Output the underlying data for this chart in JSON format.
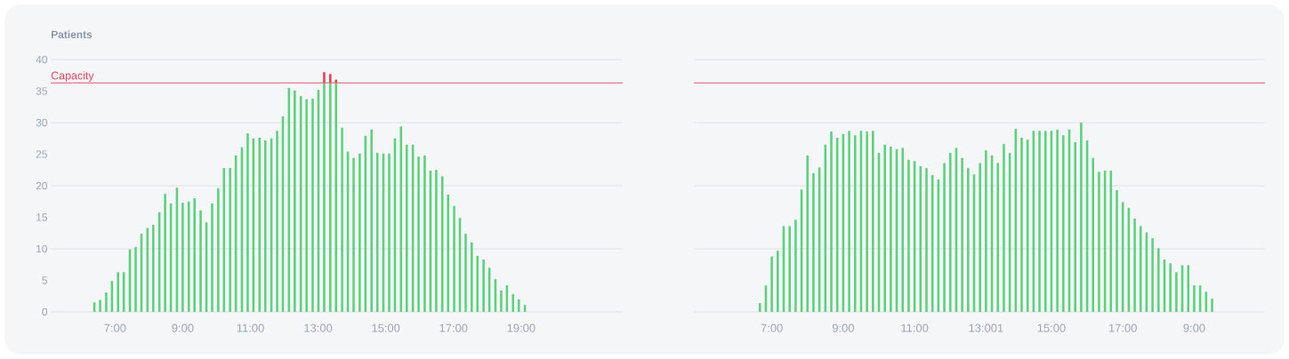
{
  "chart_data": [
    {
      "type": "bar",
      "ylabel": "Patients",
      "stacked": true,
      "grid": "y",
      "x": [
        6.39,
        6.56,
        6.74,
        6.91,
        7.09,
        7.26,
        7.44,
        7.61,
        7.78,
        7.96,
        8.13,
        8.31,
        8.48,
        8.65,
        8.83,
        9.0,
        9.18,
        9.35,
        9.53,
        9.7,
        9.87,
        10.05,
        10.22,
        10.4,
        10.57,
        10.75,
        10.92,
        11.09,
        11.27,
        11.44,
        11.62,
        11.79,
        11.96,
        12.14,
        12.31,
        12.49,
        12.66,
        12.84,
        13.01,
        13.18,
        13.36,
        13.53,
        13.71,
        13.88,
        14.05,
        14.23,
        14.4,
        14.58,
        14.75,
        14.93,
        15.1,
        15.27,
        15.45,
        15.62,
        15.8,
        15.97,
        16.15,
        16.32,
        16.49,
        16.67,
        16.84,
        17.02,
        17.19,
        17.36,
        17.54,
        17.71,
        17.89,
        18.06,
        18.24,
        18.41,
        18.58,
        18.76,
        18.93,
        19.11
      ],
      "series": [
        {
          "color": "#5ed17f",
          "values": [
            1.5,
            1.9,
            3.1,
            4.9,
            6.3,
            6.3,
            9.9,
            10.3,
            12.4,
            13.3,
            13.8,
            15.8,
            18.7,
            17.2,
            19.7,
            17.3,
            17.5,
            18.0,
            16.1,
            14.2,
            17.2,
            19.6,
            22.8,
            22.8,
            24.8,
            26.1,
            28.3,
            27.5,
            27.6,
            27.2,
            27.5,
            28.7,
            31.0,
            35.5,
            35.1,
            34.2,
            33.7,
            33.8,
            35.2,
            36.3,
            36.3,
            36.3,
            29.2,
            25.4,
            24.4,
            25.1,
            27.9,
            28.9,
            25.2,
            25.1,
            25.1,
            27.5,
            29.4,
            26.5,
            26.5,
            24.6,
            24.8,
            22.4,
            22.5,
            21.5,
            18.6,
            16.8,
            14.9,
            12.4,
            11.0,
            8.9,
            8.3,
            7.0,
            5.2,
            3.4,
            4.2,
            2.8,
            2.0,
            1.1
          ]
        },
        {
          "color": "#ef3e55",
          "values": [
            null,
            null,
            null,
            null,
            null,
            null,
            null,
            null,
            null,
            null,
            null,
            null,
            null,
            null,
            null,
            null,
            null,
            null,
            null,
            null,
            null,
            null,
            null,
            null,
            null,
            null,
            null,
            null,
            null,
            null,
            null,
            null,
            null,
            null,
            null,
            null,
            null,
            null,
            null,
            1.7,
            1.4,
            0.5,
            null,
            null,
            null,
            null,
            null,
            null,
            null,
            null,
            null,
            null,
            null,
            null,
            null,
            null,
            null,
            null,
            null,
            null,
            null,
            null,
            null,
            null,
            null,
            null,
            null,
            null,
            null,
            null,
            null,
            null,
            null,
            null
          ]
        }
      ],
      "xlim": [
        5.1,
        22
      ],
      "xticks": [
        {
          "value": 7,
          "label": "7:00"
        },
        {
          "value": 9,
          "label": "9:00"
        },
        {
          "value": 11,
          "label": "11:00"
        },
        {
          "value": 13,
          "label": "13:00"
        },
        {
          "value": 15,
          "label": "15:00"
        },
        {
          "value": 17,
          "label": "17:00"
        },
        {
          "value": 19,
          "label": "19:00"
        }
      ],
      "ylim": [
        0,
        40
      ],
      "yticks": [
        0,
        5,
        10,
        15,
        20,
        25,
        30,
        35,
        40
      ],
      "ref_lines": [
        {
          "axis": "y",
          "value": 36.3,
          "label": "Capacity",
          "color": "#e0475a"
        }
      ]
    },
    {
      "type": "bar",
      "grid": "y",
      "tick_labels": "x",
      "categories": [
        null,
        null,
        "7:00",
        null,
        null,
        null,
        null,
        null,
        null,
        null,
        null,
        null,
        null,
        null,
        "9:00",
        null,
        null,
        null,
        null,
        null,
        null,
        null,
        null,
        null,
        null,
        null,
        "11:00",
        null,
        null,
        null,
        null,
        null,
        null,
        null,
        null,
        null,
        null,
        null,
        "13:001",
        null,
        null,
        null,
        null,
        null,
        null,
        null,
        null,
        null,
        null,
        "15:00",
        null,
        null,
        null,
        null,
        null,
        null,
        null,
        null,
        null,
        null,
        null,
        "17:00",
        null,
        null,
        null,
        null,
        null,
        null,
        null,
        null,
        null,
        null,
        null,
        "9:00",
        null,
        null,
        null
      ],
      "series": [
        {
          "color": "#5ed17f",
          "values": [
            1.4,
            4.2,
            8.8,
            9.7,
            13.6,
            13.6,
            14.6,
            19.4,
            24.8,
            22.0,
            22.9,
            26.5,
            28.6,
            27.6,
            28.2,
            28.7,
            28.0,
            28.7,
            28.6,
            28.7,
            25.2,
            26.5,
            26.2,
            25.8,
            26.0,
            24.1,
            23.9,
            23.1,
            22.8,
            21.7,
            21.0,
            23.6,
            25.2,
            26.0,
            24.4,
            22.8,
            21.8,
            23.6,
            25.6,
            24.8,
            23.6,
            26.6,
            25.2,
            29.0,
            27.6,
            27.3,
            28.7,
            28.7,
            28.7,
            28.7,
            28.9,
            28.0,
            28.9,
            26.9,
            30.0,
            27.2,
            24.4,
            22.2,
            22.4,
            22.4,
            19.3,
            17.4,
            16.5,
            14.8,
            13.6,
            12.6,
            11.7,
            10.1,
            8.3,
            7.7,
            6.3,
            7.4,
            7.4,
            4.2,
            4.2,
            3.2,
            2.1
          ]
        }
      ],
      "ylim": [
        0,
        40
      ],
      "yticks": [
        0,
        5,
        10,
        15,
        20,
        25,
        30,
        35,
        40
      ],
      "ref_lines": [
        {
          "axis": "y",
          "value": 36.3,
          "color": "#e0475a"
        }
      ]
    }
  ]
}
